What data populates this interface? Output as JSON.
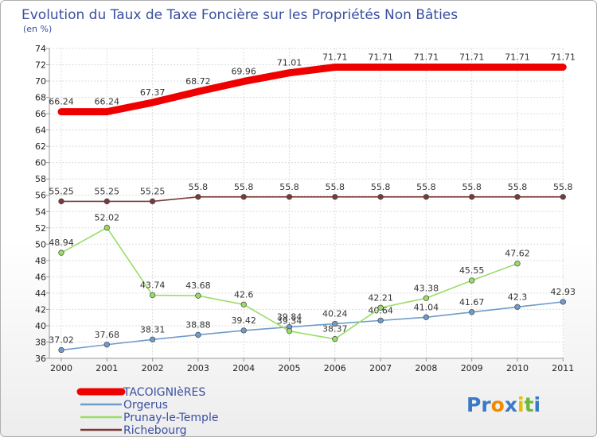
{
  "chart_data": {
    "type": "line",
    "title": "Evolution du Taux de Taxe Foncière sur les Propriétés Non Bâties",
    "subtitle": "(en %)",
    "xlabel": "",
    "ylabel": "",
    "ylim": [
      36,
      74
    ],
    "ytick_step": 2,
    "grid": true,
    "x": [
      "2000",
      "2001",
      "2002",
      "2003",
      "2004",
      "2005",
      "2006",
      "2007",
      "2008",
      "2009",
      "2010",
      "2011"
    ],
    "series": [
      {
        "name": "TACOIGNIèRES",
        "color": "#ee0000",
        "marker": false,
        "values": [
          66.24,
          66.24,
          67.37,
          68.72,
          69.96,
          71.01,
          71.71,
          71.71,
          71.71,
          71.71,
          71.71,
          71.71
        ],
        "labels": [
          "66.24",
          "66.24",
          "67.37",
          "68.72",
          "69.96",
          "71.01",
          "71.71",
          "71.71",
          "71.71",
          "71.71",
          "71.71",
          "71.71"
        ]
      },
      {
        "name": "Orgerus",
        "color": "#6e9ccb",
        "marker": true,
        "values": [
          37.02,
          37.68,
          38.31,
          38.88,
          39.42,
          39.84,
          40.24,
          40.64,
          41.04,
          41.67,
          42.3,
          42.93
        ],
        "labels": [
          "37.02",
          "37.68",
          "38.31",
          "38.88",
          "39.42",
          "39.84",
          "40.24",
          "40.64",
          "41.04",
          "41.67",
          "42.3",
          "42.93"
        ]
      },
      {
        "name": "Prunay-le-Temple",
        "color": "#99dd66",
        "marker": true,
        "values": [
          48.94,
          52.02,
          43.74,
          43.68,
          42.6,
          39.34,
          38.37,
          42.21,
          43.38,
          45.55,
          47.62,
          null
        ],
        "labels": [
          "48.94",
          "52.02",
          "43.74",
          "43.68",
          "42.6",
          "39.34",
          "38.37",
          "42.21",
          "43.38",
          "45.55",
          "47.62",
          ""
        ]
      },
      {
        "name": "Richebourg",
        "color": "#7a3a3a",
        "marker": true,
        "values": [
          55.25,
          55.25,
          55.25,
          55.8,
          55.8,
          55.8,
          55.8,
          55.8,
          55.8,
          55.8,
          55.8,
          55.8
        ],
        "labels": [
          "55.25",
          "55.25",
          "55.25",
          "55.8",
          "55.8",
          "55.8",
          "55.8",
          "55.8",
          "55.8",
          "55.8",
          "55.8",
          "55.8"
        ]
      }
    ]
  },
  "legend": [
    {
      "name": "TACOIGNIèRES",
      "color": "#ee0000"
    },
    {
      "name": "Orgerus",
      "color": "#6e9ccb"
    },
    {
      "name": "Prunay-le-Temple",
      "color": "#99dd66"
    },
    {
      "name": "Richebourg",
      "color": "#7a3a3a"
    }
  ],
  "logo": {
    "letters": [
      "P",
      "r",
      "o",
      "x",
      "i",
      "t",
      "i"
    ],
    "colors": [
      "#3a78c8",
      "#3a78c8",
      "#f08a00",
      "#3a78c8",
      "#e0c000",
      "#6cb83a",
      "#3a78c8"
    ]
  }
}
